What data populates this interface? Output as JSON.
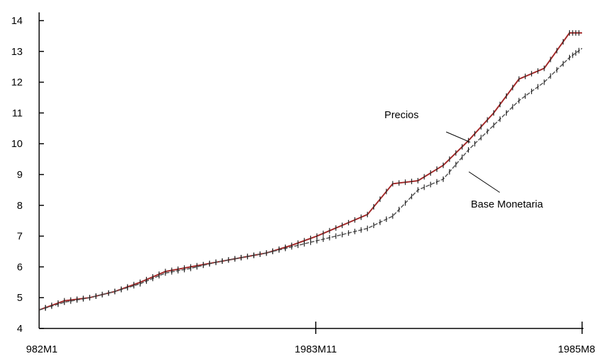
{
  "chart_data": {
    "type": "line",
    "title": "",
    "xlabel": "",
    "ylabel": "",
    "ylim": [
      4,
      14
    ],
    "y_ticks": [
      "4",
      "5",
      "6",
      "7",
      "8",
      "9",
      "10",
      "11",
      "12",
      "13",
      "14"
    ],
    "x_tick_labels": [
      "982M1",
      "1983M11",
      "1985M8"
    ],
    "grid": false,
    "legend": "none",
    "annotations": [
      "Precios",
      "Base Monetaria"
    ],
    "x": [
      0,
      2,
      4,
      6,
      8,
      10,
      12,
      14,
      16,
      18,
      20,
      22,
      24,
      26,
      28,
      30,
      32,
      34,
      36,
      38,
      40,
      42,
      43
    ],
    "series": [
      {
        "name": "Precios",
        "color": "#a02828",
        "values": [
          4.6,
          4.9,
          5.0,
          5.2,
          5.5,
          5.85,
          6.0,
          6.15,
          6.3,
          6.45,
          6.7,
          7.0,
          7.35,
          7.7,
          8.7,
          8.8,
          9.3,
          10.1,
          11.0,
          12.1,
          12.45,
          13.6,
          13.6
        ]
      },
      {
        "name": "Base Monetaria",
        "color": "#555555",
        "values": [
          4.6,
          4.85,
          5.0,
          5.2,
          5.45,
          5.8,
          5.95,
          6.15,
          6.3,
          6.45,
          6.65,
          6.85,
          7.05,
          7.25,
          7.65,
          8.5,
          8.85,
          9.8,
          10.6,
          11.4,
          12.0,
          12.8,
          13.1
        ]
      }
    ]
  }
}
